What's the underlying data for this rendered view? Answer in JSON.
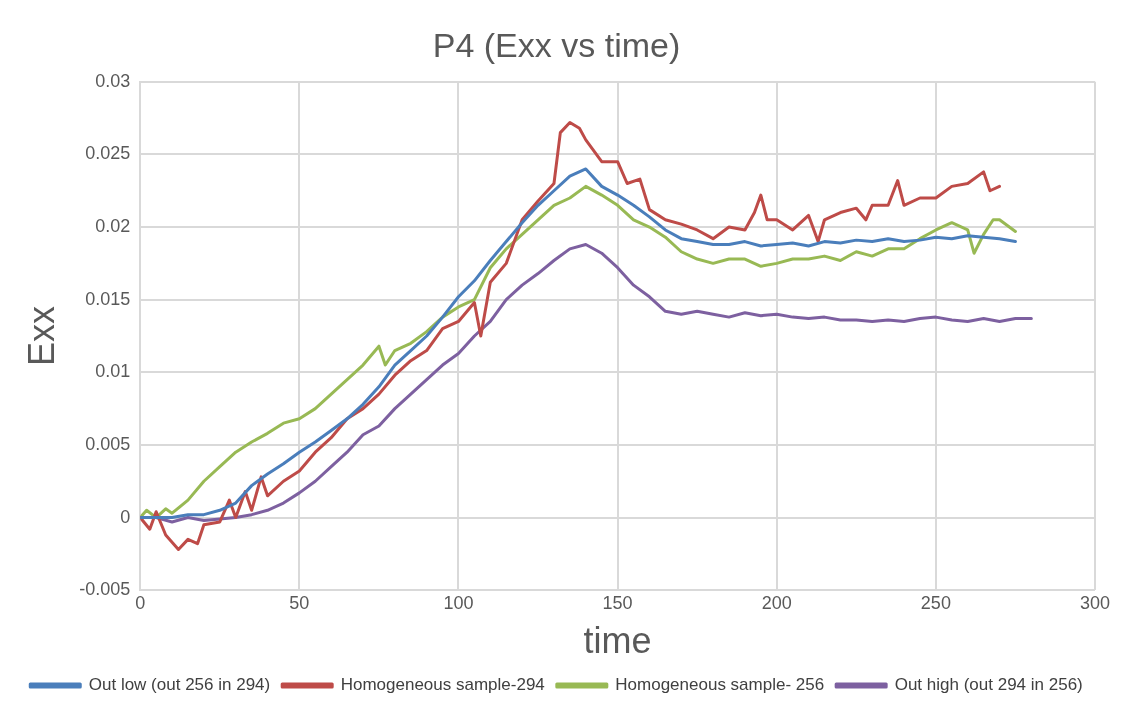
{
  "chart_data": {
    "type": "line",
    "title": "P4 (Exx vs time)",
    "xlabel": "time",
    "ylabel": "Exx",
    "xlim": [
      0,
      300
    ],
    "xticks": [
      0,
      50,
      100,
      150,
      200,
      250,
      300
    ],
    "ylim": [
      -0.005,
      0.03
    ],
    "yticks": [
      -0.005,
      0,
      0.005,
      0.01,
      0.015,
      0.02,
      0.025,
      0.03
    ],
    "grid": true,
    "legend": "bottom",
    "marker": "none",
    "line_style": "solid",
    "series": [
      {
        "name": "Out low (out 256 in 294)",
        "color": "#4a7ebb",
        "x": [
          0,
          5,
          10,
          15,
          20,
          25,
          30,
          35,
          40,
          45,
          50,
          55,
          60,
          65,
          70,
          75,
          80,
          85,
          90,
          95,
          100,
          105,
          110,
          115,
          120,
          125,
          130,
          135,
          140,
          145,
          150,
          155,
          160,
          165,
          170,
          175,
          180,
          185,
          190,
          195,
          200,
          205,
          210,
          215,
          220,
          225,
          230,
          235,
          240,
          245,
          250,
          255,
          260,
          265,
          270,
          275
        ],
        "values": [
          0,
          0,
          0,
          0.0002,
          0.0002,
          0.0005,
          0.001,
          0.0022,
          0.003,
          0.0037,
          0.0045,
          0.0052,
          0.006,
          0.0068,
          0.0078,
          0.009,
          0.0105,
          0.0115,
          0.0125,
          0.0138,
          0.0152,
          0.0163,
          0.0177,
          0.019,
          0.0203,
          0.0215,
          0.0225,
          0.0235,
          0.024,
          0.0228,
          0.0222,
          0.0215,
          0.0207,
          0.0198,
          0.0192,
          0.019,
          0.0188,
          0.0188,
          0.019,
          0.0187,
          0.0188,
          0.0189,
          0.0187,
          0.019,
          0.0189,
          0.0191,
          0.019,
          0.0192,
          0.019,
          0.0191,
          0.0193,
          0.0192,
          0.0194,
          0.0193,
          0.0192,
          0.019
        ]
      },
      {
        "name": "Homogeneous sample-294",
        "color": "#be4b48",
        "x": [
          0,
          3,
          5,
          8,
          12,
          15,
          18,
          20,
          25,
          28,
          30,
          33,
          35,
          38,
          40,
          45,
          50,
          55,
          60,
          65,
          70,
          75,
          80,
          85,
          90,
          95,
          100,
          105,
          107,
          110,
          115,
          120,
          125,
          130,
          132,
          135,
          138,
          140,
          145,
          150,
          153,
          157,
          160,
          165,
          170,
          175,
          180,
          185,
          190,
          193,
          195,
          197,
          200,
          205,
          210,
          213,
          215,
          220,
          225,
          228,
          230,
          235,
          238,
          240,
          245,
          250,
          255,
          260,
          265,
          267,
          270
        ],
        "values": [
          0,
          -0.0008,
          0.0004,
          -0.0012,
          -0.0022,
          -0.0015,
          -0.0018,
          -0.0005,
          -0.0003,
          0.0012,
          0,
          0.0018,
          0.0005,
          0.0028,
          0.0015,
          0.0025,
          0.0032,
          0.0045,
          0.0055,
          0.0068,
          0.0075,
          0.0085,
          0.0098,
          0.0108,
          0.0115,
          0.013,
          0.0135,
          0.0148,
          0.0125,
          0.0162,
          0.0175,
          0.0205,
          0.0218,
          0.023,
          0.0265,
          0.0272,
          0.0268,
          0.026,
          0.0245,
          0.0245,
          0.023,
          0.0233,
          0.0212,
          0.0205,
          0.0202,
          0.0198,
          0.0192,
          0.02,
          0.0198,
          0.021,
          0.0222,
          0.0205,
          0.0205,
          0.0198,
          0.0208,
          0.019,
          0.0205,
          0.021,
          0.0213,
          0.0205,
          0.0215,
          0.0215,
          0.0232,
          0.0215,
          0.022,
          0.022,
          0.0228,
          0.023,
          0.0238,
          0.0225,
          0.0228
        ]
      },
      {
        "name": "Homogeneous sample- 256",
        "color": "#98b954",
        "x": [
          0,
          2,
          5,
          8,
          10,
          15,
          20,
          25,
          30,
          35,
          40,
          45,
          50,
          55,
          60,
          65,
          70,
          75,
          77,
          80,
          85,
          90,
          95,
          100,
          105,
          110,
          115,
          120,
          125,
          130,
          135,
          140,
          145,
          150,
          155,
          160,
          165,
          170,
          175,
          180,
          185,
          190,
          195,
          200,
          205,
          210,
          215,
          220,
          225,
          230,
          235,
          240,
          245,
          250,
          255,
          260,
          262,
          265,
          268,
          270,
          275
        ],
        "values": [
          0,
          0.0005,
          0,
          0.0006,
          0.0003,
          0.0012,
          0.0025,
          0.0035,
          0.0045,
          0.0052,
          0.0058,
          0.0065,
          0.0068,
          0.0075,
          0.0085,
          0.0095,
          0.0105,
          0.0118,
          0.0105,
          0.0115,
          0.012,
          0.0128,
          0.0138,
          0.0145,
          0.015,
          0.0172,
          0.0185,
          0.0195,
          0.0205,
          0.0215,
          0.022,
          0.0228,
          0.0222,
          0.0215,
          0.0205,
          0.02,
          0.0193,
          0.0183,
          0.0178,
          0.0175,
          0.0178,
          0.0178,
          0.0173,
          0.0175,
          0.0178,
          0.0178,
          0.018,
          0.0177,
          0.0183,
          0.018,
          0.0185,
          0.0185,
          0.0192,
          0.0198,
          0.0203,
          0.0198,
          0.0182,
          0.0195,
          0.0205,
          0.0205,
          0.0197
        ]
      },
      {
        "name": "Out high (out 294 in 256)",
        "color": "#7d60a0",
        "x": [
          0,
          5,
          10,
          15,
          20,
          25,
          30,
          35,
          40,
          45,
          50,
          55,
          60,
          65,
          70,
          75,
          80,
          85,
          90,
          95,
          100,
          105,
          110,
          115,
          120,
          125,
          130,
          135,
          140,
          145,
          150,
          155,
          160,
          165,
          170,
          175,
          180,
          185,
          190,
          195,
          200,
          205,
          210,
          215,
          220,
          225,
          230,
          235,
          240,
          245,
          250,
          255,
          260,
          265,
          270,
          275,
          280
        ],
        "values": [
          0,
          0,
          -0.0003,
          0,
          -0.0002,
          -0.0001,
          0,
          0.0002,
          0.0005,
          0.001,
          0.0017,
          0.0025,
          0.0035,
          0.0045,
          0.0057,
          0.0063,
          0.0075,
          0.0085,
          0.0095,
          0.0105,
          0.0113,
          0.0125,
          0.0135,
          0.015,
          0.016,
          0.0168,
          0.0177,
          0.0185,
          0.0188,
          0.0182,
          0.0172,
          0.016,
          0.0152,
          0.0142,
          0.014,
          0.0142,
          0.014,
          0.0138,
          0.0141,
          0.0139,
          0.014,
          0.0138,
          0.0137,
          0.0138,
          0.0136,
          0.0136,
          0.0135,
          0.0136,
          0.0135,
          0.0137,
          0.0138,
          0.0136,
          0.0135,
          0.0137,
          0.0135,
          0.0137,
          0.0137
        ]
      }
    ]
  }
}
